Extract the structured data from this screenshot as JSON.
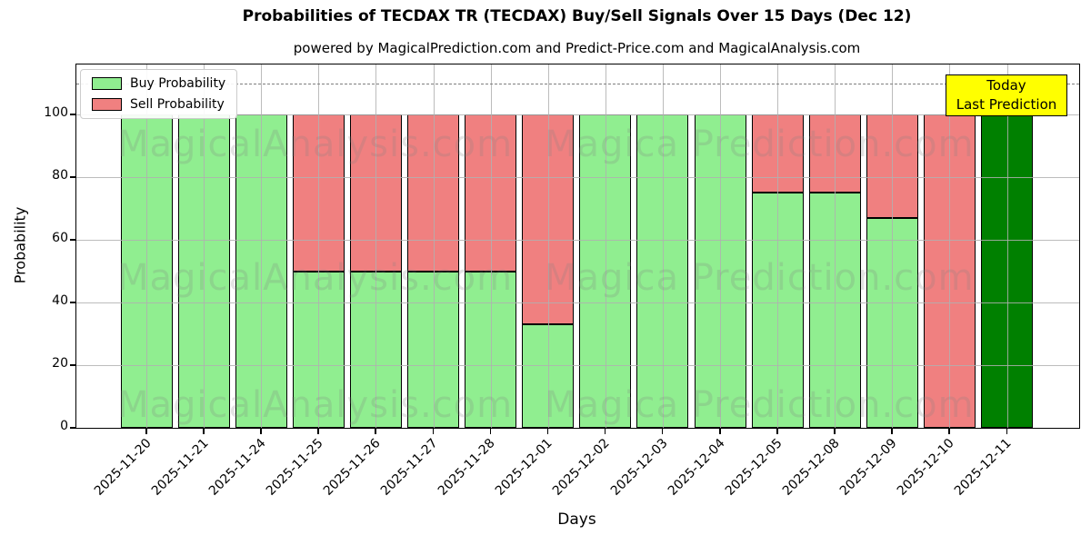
{
  "chart": {
    "title": "Probabilities of TECDAX TR (TECDAX) Buy/Sell Signals Over 15 Days (Dec 12)",
    "subtitle": "powered by MagicalPrediction.com and Predict-Price.com and MagicalAnalysis.com",
    "xlabel": "Days",
    "ylabel": "Probability",
    "legend": [
      {
        "label": "Buy Probability",
        "color": "#90EE90"
      },
      {
        "label": "Sell Probability",
        "color": "#F08080"
      }
    ],
    "annotation": {
      "line1": "Today",
      "line2": "Last Prediction",
      "bg": "#FFFF00"
    },
    "watermarks": [
      "MagicalAnalysis.com",
      "Magica Prediction.com"
    ]
  },
  "chart_data": {
    "type": "bar",
    "stacked": true,
    "title": "Probabilities of TECDAX TR (TECDAX) Buy/Sell Signals Over 15 Days (Dec 12)",
    "xlabel": "Days",
    "ylabel": "Probability",
    "categories": [
      "2025-11-20",
      "2025-11-21",
      "2025-11-24",
      "2025-11-25",
      "2025-11-26",
      "2025-11-27",
      "2025-11-28",
      "2025-12-01",
      "2025-12-02",
      "2025-12-03",
      "2025-12-04",
      "2025-12-05",
      "2025-12-08",
      "2025-12-09",
      "2025-12-10",
      "2025-12-11"
    ],
    "series": [
      {
        "name": "Buy Probability",
        "color": "#90EE90",
        "values": [
          100,
          100,
          100,
          50,
          50,
          50,
          50,
          33,
          100,
          100,
          100,
          75,
          75,
          67,
          0,
          100
        ]
      },
      {
        "name": "Sell Probability",
        "color": "#F08080",
        "values": [
          0,
          0,
          0,
          50,
          50,
          50,
          50,
          67,
          0,
          0,
          0,
          25,
          25,
          33,
          100,
          0
        ]
      }
    ],
    "highlight_last": true,
    "last_bar_color": "#008000",
    "yticks": [
      0,
      20,
      40,
      60,
      80,
      100
    ],
    "ylim": [
      0,
      116
    ],
    "dashed_line_y": 110,
    "grid": true,
    "legend_position": "upper left"
  }
}
